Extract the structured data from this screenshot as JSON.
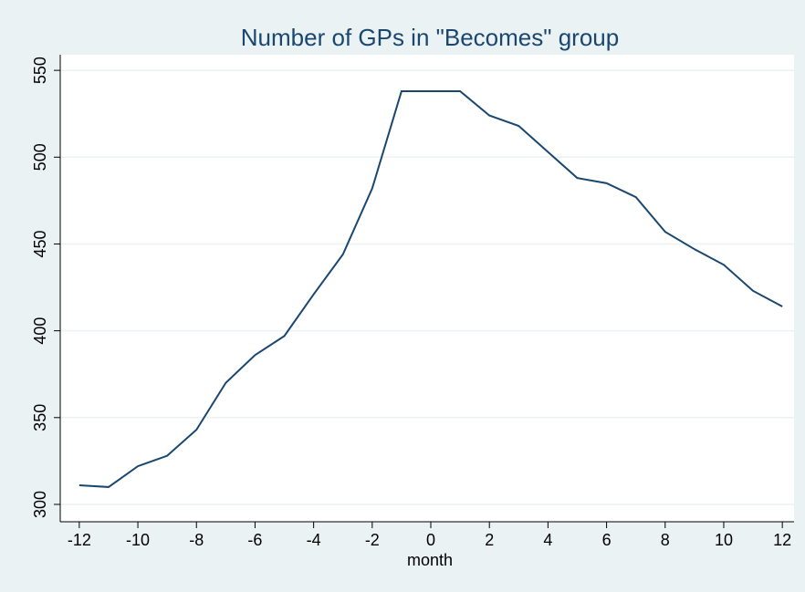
{
  "chart_data": {
    "type": "line",
    "title": "Number of GPs in \"Becomes\" group",
    "x_label": "month",
    "x": [
      -12,
      -11,
      -10,
      -9,
      -8,
      -7,
      -6,
      -5,
      -4,
      -3,
      -2,
      -1,
      0,
      1,
      2,
      3,
      4,
      5,
      6,
      7,
      8,
      9,
      10,
      11,
      12
    ],
    "series": [
      {
        "color": "#1a476f",
        "values": [
          311,
          310,
          322,
          328,
          343,
          370,
          386,
          397,
          421,
          444,
          482,
          538,
          538,
          538,
          524,
          518,
          503,
          488,
          485,
          477,
          457,
          447,
          438,
          423,
          414
        ]
      }
    ],
    "xlim": [
      -12.65,
      12.4
    ],
    "ylim": [
      290,
      559
    ],
    "xticks": [
      -12,
      -10,
      -8,
      -6,
      -4,
      -2,
      0,
      2,
      4,
      6,
      8,
      10,
      12
    ],
    "yticks": [
      300,
      350,
      400,
      450,
      500,
      550
    ],
    "grid": true
  }
}
